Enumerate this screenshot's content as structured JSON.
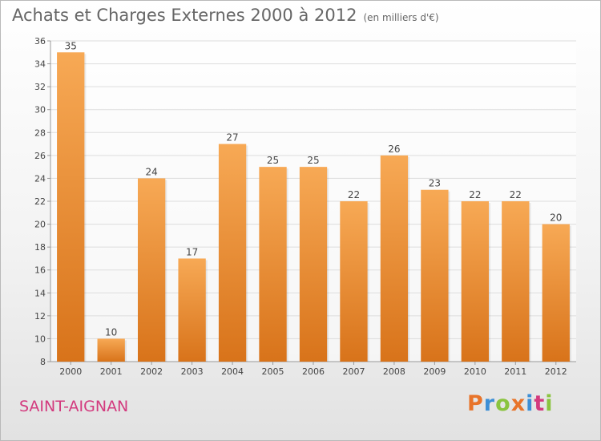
{
  "title": "Achats et Charges Externes 2000 à 2012",
  "title_unit": "(en milliers d'€)",
  "commune": "SAINT-AIGNAN",
  "logo": {
    "letters": [
      "P",
      "r",
      "o",
      "x",
      "i",
      "t",
      "i"
    ],
    "colors": [
      "#e8742a",
      "#3d8fd6",
      "#8ac43f",
      "#e8742a",
      "#3d8fd6",
      "#d33a7e",
      "#8ac43f"
    ]
  },
  "colors": {
    "bar_top": "#f7a955",
    "bar_bottom": "#d8731a",
    "value_label": "#444444",
    "commune": "#d33a7e"
  },
  "chart_data": {
    "type": "bar",
    "categories": [
      "2000",
      "2001",
      "2002",
      "2003",
      "2004",
      "2005",
      "2006",
      "2007",
      "2008",
      "2009",
      "2010",
      "2011",
      "2012"
    ],
    "values": [
      35,
      10,
      24,
      17,
      27,
      25,
      25,
      22,
      26,
      23,
      22,
      22,
      20
    ],
    "title": "Achats et Charges Externes 2000 à 2012",
    "xlabel": "",
    "ylabel": "",
    "ylim": [
      8,
      36
    ],
    "yticks": [
      8,
      10,
      12,
      14,
      16,
      18,
      20,
      22,
      24,
      26,
      28,
      30,
      32,
      34,
      36
    ],
    "grid": "horizontal",
    "legend": "none"
  }
}
